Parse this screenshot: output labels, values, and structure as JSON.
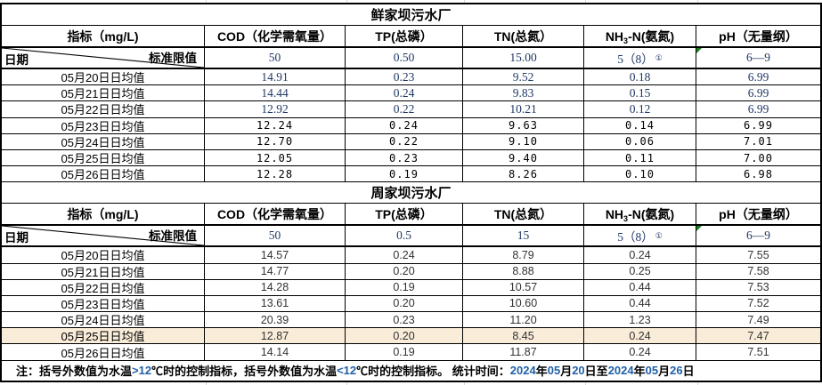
{
  "colors": {
    "serif_number": "#1F3864",
    "mono_number": "#000000",
    "sans_number": "#333333",
    "highlight_bg": "#F9ECD9",
    "footer_blue": "#2060A8",
    "comment_green": "#1E7D1E",
    "border": "#000000"
  },
  "tables": [
    {
      "title": "鲜家坝污水厂",
      "header": {
        "indicator": "指标（mg/L)",
        "cod": "COD（化学需氧量）",
        "tp": "TP(总磷）",
        "tn": "TN(总氮）",
        "nh3_pre": "NH",
        "nh3_sub": "3",
        "nh3_post": "-N(氨氮)",
        "ph": "pH（无量纲）"
      },
      "corner": {
        "date_label": "日期",
        "limit_label": "标准限值"
      },
      "limits": {
        "cod": "50",
        "tp": "0.50",
        "tn": "15.00",
        "nh3": "5（8）",
        "nh3_mark": "①",
        "ph": "6—9"
      },
      "rows": [
        {
          "date": "05月20日日均值",
          "cod": "14.91",
          "tp": "0.23",
          "tn": "9.52",
          "nh3": "0.18",
          "ph": "6.99",
          "variant": "serif",
          "highlight": false
        },
        {
          "date": "05月21日日均值",
          "cod": "14.44",
          "tp": "0.24",
          "tn": "9.83",
          "nh3": "0.15",
          "ph": "6.99",
          "variant": "serif",
          "highlight": false
        },
        {
          "date": "05月22日日均值",
          "cod": "12.92",
          "tp": "0.22",
          "tn": "10.21",
          "nh3": "0.12",
          "ph": "6.99",
          "variant": "serif",
          "highlight": false
        },
        {
          "date": "05月23日日均值",
          "cod": "12.24",
          "tp": "0.24",
          "tn": "9.63",
          "nh3": "0.14",
          "ph": "6.99",
          "variant": "mono",
          "highlight": false
        },
        {
          "date": "05月24日日均值",
          "cod": "12.70",
          "tp": "0.22",
          "tn": "9.10",
          "nh3": "0.06",
          "ph": "7.01",
          "variant": "mono",
          "highlight": false
        },
        {
          "date": "05月25日日均值",
          "cod": "12.05",
          "tp": "0.23",
          "tn": "9.40",
          "nh3": "0.11",
          "ph": "7.00",
          "variant": "mono",
          "highlight": false
        },
        {
          "date": "05月26日日均值",
          "cod": "12.28",
          "tp": "0.19",
          "tn": "8.26",
          "nh3": "0.10",
          "ph": "6.98",
          "variant": "mono",
          "highlight": false
        }
      ]
    },
    {
      "title": "周家坝污水厂",
      "header": {
        "indicator": "指标（mg/L)",
        "cod": "COD（化学需氧量）",
        "tp": "TP(总磷）",
        "tn": "TN(总氮）",
        "nh3_pre": "NH",
        "nh3_sub": "3",
        "nh3_post": "-N(氨氮)",
        "ph": "pH（无量纲）"
      },
      "corner": {
        "date_label": "日期",
        "limit_label": "标准限值"
      },
      "limits": {
        "cod": "50",
        "tp": "0.5",
        "tn": "15",
        "nh3": "5（8）",
        "nh3_mark": "①",
        "ph": "6—9"
      },
      "rows": [
        {
          "date": "05月20日日均值",
          "cod": "14.57",
          "tp": "0.24",
          "tn": "8.79",
          "nh3": "0.24",
          "ph": "7.55",
          "variant": "sans",
          "highlight": false
        },
        {
          "date": "05月21日日均值",
          "cod": "14.77",
          "tp": "0.20",
          "tn": "8.88",
          "nh3": "0.25",
          "ph": "7.58",
          "variant": "sans",
          "highlight": false
        },
        {
          "date": "05月22日日均值",
          "cod": "14.28",
          "tp": "0.19",
          "tn": "10.57",
          "nh3": "0.44",
          "ph": "7.53",
          "variant": "sans",
          "highlight": false
        },
        {
          "date": "05月23日日均值",
          "cod": "13.61",
          "tp": "0.20",
          "tn": "10.60",
          "nh3": "0.44",
          "ph": "7.52",
          "variant": "sans",
          "highlight": false
        },
        {
          "date": "05月24日日均值",
          "cod": "20.39",
          "tp": "0.23",
          "tn": "11.20",
          "nh3": "1.23",
          "ph": "7.49",
          "variant": "sans",
          "highlight": false
        },
        {
          "date": "05月25日日均值",
          "cod": "12.87",
          "tp": "0.20",
          "tn": "8.45",
          "nh3": "0.24",
          "ph": "7.47",
          "variant": "sans",
          "highlight": true
        },
        {
          "date": "05月26日日均值",
          "cod": "14.14",
          "tp": "0.19",
          "tn": "11.87",
          "nh3": "0.24",
          "ph": "7.51",
          "variant": "sans",
          "highlight": false
        }
      ]
    }
  ],
  "footer": {
    "segments": [
      {
        "text": "注：括号外数值为水温",
        "blue": false
      },
      {
        "text": ">12",
        "blue": true
      },
      {
        "text": "℃时的控制指标，括号外数值为水温",
        "blue": false
      },
      {
        "text": "<12",
        "blue": true
      },
      {
        "text": "℃时的控制指标。   统计时间：",
        "blue": false
      },
      {
        "text": "2024",
        "blue": true
      },
      {
        "text": "年",
        "blue": false
      },
      {
        "text": "05",
        "blue": true
      },
      {
        "text": "月",
        "blue": false
      },
      {
        "text": "20",
        "blue": true
      },
      {
        "text": "日至",
        "blue": false
      },
      {
        "text": "2024",
        "blue": true
      },
      {
        "text": "年",
        "blue": false
      },
      {
        "text": "05",
        "blue": true
      },
      {
        "text": "月",
        "blue": false
      },
      {
        "text": "26",
        "blue": true
      },
      {
        "text": "日",
        "blue": false
      }
    ]
  }
}
